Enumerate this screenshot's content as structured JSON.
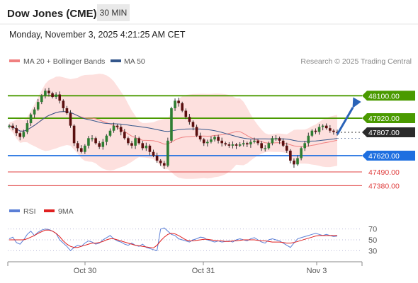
{
  "header": {
    "title": "Dow Jones (CME)",
    "timeframe": "30 MIN",
    "datetime": "Monday, November 3, 2025 4:21:25 AM CET"
  },
  "legend": {
    "ma20_label": "MA 20 + Bollinger Bands",
    "ma50_label": "MA 50",
    "credit": "Research © 2025 Trading Central",
    "ma20_color": "#f08080",
    "ma50_color": "#34568b"
  },
  "rsi_legend": {
    "rsi_label": "RSI",
    "ma9_label": "9MA",
    "rsi_color": "#5b7fd6",
    "ma9_color": "#e02020"
  },
  "chart_data": {
    "type": "candlestick",
    "ylim": [
      47280,
      48300
    ],
    "x_labels": [
      "Oct 30",
      "Oct 31",
      "Nov 3"
    ],
    "current_price": "47807.00",
    "levels": [
      {
        "value": 48100,
        "label": "48100.00",
        "kind": "resistance",
        "color": "#4a9a00"
      },
      {
        "value": 47920,
        "label": "47920.00",
        "kind": "resistance",
        "color": "#4a9a00"
      },
      {
        "value": 47620,
        "label": "47620.00",
        "kind": "pivot",
        "color": "#1e6fe0"
      },
      {
        "value": 47490,
        "label": "47490.00",
        "kind": "support",
        "color": "#e04040"
      },
      {
        "value": 47380,
        "label": "47380.00",
        "kind": "support",
        "color": "#e04040"
      }
    ],
    "price_path": [
      47860,
      47840,
      47800,
      47770,
      47810,
      47880,
      47950,
      47990,
      48050,
      48100,
      48140,
      48120,
      48090,
      48110,
      48060,
      48000,
      47960,
      47860,
      47720,
      47680,
      47650,
      47700,
      47760,
      47760,
      47720,
      47690,
      47730,
      47780,
      47820,
      47860,
      47850,
      47810,
      47760,
      47720,
      47700,
      47760,
      47720,
      47680,
      47700,
      47650,
      47620,
      47580,
      47560,
      47540,
      47740,
      48000,
      48060,
      48040,
      47980,
      47930,
      47890,
      47850,
      47780,
      47750,
      47720,
      47730,
      47750,
      47770,
      47740,
      47720,
      47710,
      47700,
      47710,
      47700,
      47710,
      47720,
      47710,
      47730,
      47740,
      47720,
      47680,
      47680,
      47720,
      47760,
      47760,
      47740,
      47700,
      47660,
      47580,
      47550,
      47600,
      47680,
      47720,
      47780,
      47820,
      47810,
      47850,
      47860,
      47840,
      47820,
      47810,
      47807
    ],
    "rsi": {
      "ticks": [
        70,
        50,
        30
      ],
      "values": [
        52,
        55,
        45,
        42,
        50,
        60,
        66,
        58,
        64,
        68,
        70,
        69,
        66,
        62,
        50,
        44,
        38,
        30,
        36,
        40,
        38,
        44,
        48,
        46,
        42,
        44,
        50,
        54,
        58,
        52,
        48,
        46,
        42,
        40,
        44,
        40,
        38,
        42,
        36,
        34,
        32,
        30,
        70,
        72,
        66,
        60,
        58,
        52,
        50,
        48,
        46,
        50,
        52,
        55,
        54,
        50,
        48,
        46,
        48,
        46,
        47,
        48,
        46,
        50,
        52,
        50,
        48,
        52,
        54,
        50,
        46,
        44,
        50,
        52,
        50,
        48,
        44,
        40,
        36,
        44,
        52,
        54,
        56,
        58,
        60,
        62,
        60,
        58,
        60,
        58,
        56,
        57
      ],
      "ma9": [
        50,
        50,
        50,
        50,
        50,
        52,
        55,
        58,
        62,
        65,
        68,
        68,
        66,
        62,
        56,
        48,
        42,
        38,
        36,
        36,
        38,
        40,
        42,
        44,
        44,
        45,
        47,
        50,
        52,
        52,
        50,
        48,
        46,
        44,
        42,
        40,
        39,
        38,
        37,
        36,
        35,
        40,
        48,
        55,
        60,
        62,
        61,
        58,
        54,
        50,
        48,
        48,
        49,
        50,
        51,
        51,
        50,
        49,
        48,
        48,
        47,
        47,
        48,
        48,
        49,
        50,
        50,
        50,
        50,
        49,
        48,
        48,
        47,
        46,
        46,
        46,
        45,
        44,
        44,
        45,
        47,
        49,
        51,
        53,
        55,
        57,
        58,
        58,
        58,
        58,
        58,
        58
      ]
    }
  }
}
